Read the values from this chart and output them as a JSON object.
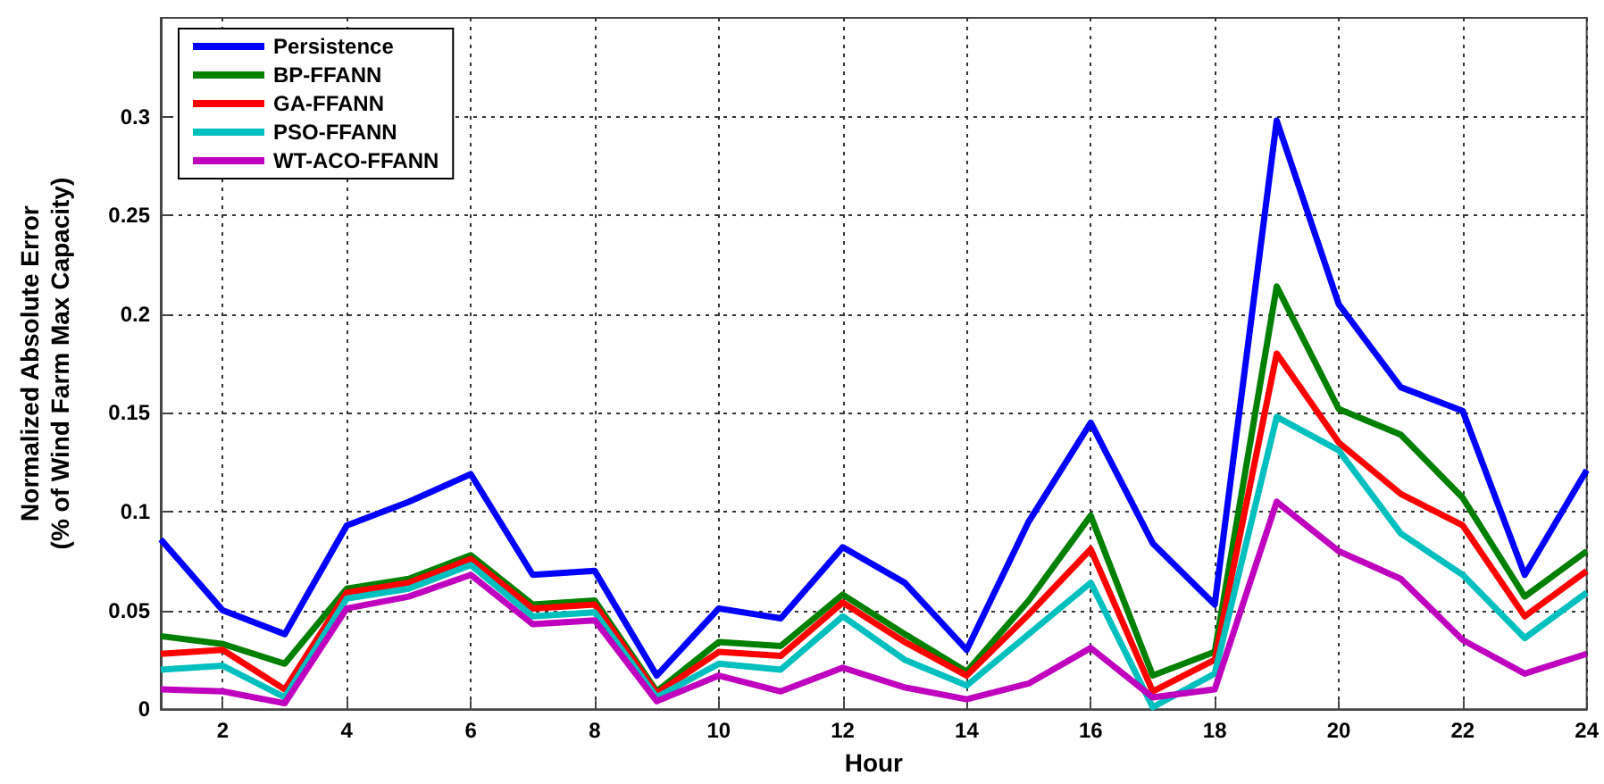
{
  "chart_data": {
    "type": "line",
    "xlabel": "Hour",
    "ylabel": "Normalized Absolute Error\n(% of Wind Farm Max Capacity)",
    "x": [
      1,
      2,
      3,
      4,
      5,
      6,
      7,
      8,
      9,
      10,
      11,
      12,
      13,
      14,
      15,
      16,
      17,
      18,
      19,
      20,
      21,
      22,
      23,
      24
    ],
    "series": [
      {
        "name": "Persistence",
        "color": "#0000ff",
        "values": [
          0.086,
          0.05,
          0.038,
          0.093,
          0.105,
          0.119,
          0.068,
          0.07,
          0.017,
          0.051,
          0.046,
          0.082,
          0.064,
          0.03,
          0.095,
          0.145,
          0.084,
          0.053,
          0.298,
          0.205,
          0.163,
          0.151,
          0.068,
          0.121
        ]
      },
      {
        "name": "BP-FFANN",
        "color": "#008000",
        "values": [
          0.037,
          0.033,
          0.023,
          0.061,
          0.066,
          0.078,
          0.053,
          0.055,
          0.009,
          0.034,
          0.032,
          0.058,
          0.038,
          0.019,
          0.055,
          0.098,
          0.017,
          0.029,
          0.214,
          0.152,
          0.139,
          0.107,
          0.057,
          0.08
        ]
      },
      {
        "name": "GA-FFANN",
        "color": "#ff0000",
        "values": [
          0.028,
          0.03,
          0.01,
          0.059,
          0.064,
          0.076,
          0.051,
          0.053,
          0.008,
          0.029,
          0.027,
          0.054,
          0.034,
          0.017,
          0.048,
          0.081,
          0.009,
          0.025,
          0.18,
          0.135,
          0.109,
          0.093,
          0.047,
          0.07
        ]
      },
      {
        "name": "PSO-FFANN",
        "color": "#00bfbf",
        "values": [
          0.02,
          0.022,
          0.006,
          0.056,
          0.061,
          0.073,
          0.047,
          0.049,
          0.006,
          0.023,
          0.02,
          0.047,
          0.025,
          0.012,
          0.038,
          0.064,
          0.001,
          0.018,
          0.148,
          0.131,
          0.089,
          0.068,
          0.036,
          0.059
        ]
      },
      {
        "name": "WT-ACO-FFANN",
        "color": "#bf00bf",
        "values": [
          0.01,
          0.009,
          0.003,
          0.051,
          0.057,
          0.068,
          0.043,
          0.045,
          0.004,
          0.017,
          0.009,
          0.021,
          0.011,
          0.005,
          0.013,
          0.031,
          0.006,
          0.01,
          0.105,
          0.08,
          0.066,
          0.035,
          0.018,
          0.028
        ]
      }
    ],
    "xlim": [
      1,
      24
    ],
    "xticks": [
      2,
      4,
      6,
      8,
      10,
      12,
      14,
      16,
      18,
      20,
      22,
      24
    ],
    "ylim": [
      0,
      0.35
    ],
    "yticks": [
      0,
      0.05,
      0.1,
      0.15,
      0.2,
      0.25,
      0.3
    ],
    "grid": true,
    "legend": "top left",
    "marker": "none",
    "line_style": "solid"
  }
}
